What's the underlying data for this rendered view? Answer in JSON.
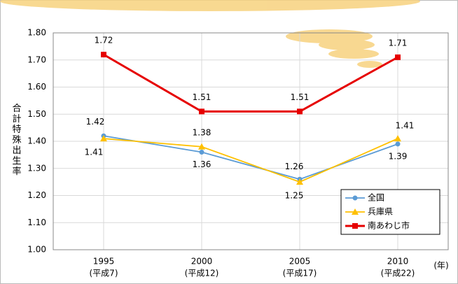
{
  "chart_data": {
    "type": "line",
    "y_label": "合計特殊出生率",
    "x_label": "(年)",
    "categories": [
      "1995",
      "2000",
      "2005",
      "2010"
    ],
    "category_sublabels": [
      "(平成7)",
      "(平成12)",
      "(平成17)",
      "(平成22)"
    ],
    "series": [
      {
        "name": "全国",
        "color": "#5b9bd5",
        "marker": "circle",
        "values": [
          1.42,
          1.36,
          1.26,
          1.39
        ]
      },
      {
        "name": "兵庫県",
        "color": "#ffc000",
        "marker": "triangle",
        "values": [
          1.41,
          1.38,
          1.25,
          1.41
        ]
      },
      {
        "name": "南あわじ市",
        "color": "#e60000",
        "marker": "square",
        "values": [
          1.72,
          1.51,
          1.51,
          1.71
        ]
      }
    ],
    "ylim": [
      1.0,
      1.8
    ],
    "yticks": [
      {
        "value": 1.0,
        "label": "1.00"
      },
      {
        "value": 1.1,
        "label": "1.10"
      },
      {
        "value": 1.2,
        "label": "1.20"
      },
      {
        "value": 1.3,
        "label": "1.30"
      },
      {
        "value": 1.4,
        "label": "1.40"
      },
      {
        "value": 1.5,
        "label": "1.50"
      },
      {
        "value": 1.6,
        "label": "1.60"
      },
      {
        "value": 1.7,
        "label": "1.70"
      },
      {
        "value": 1.8,
        "label": "1.80"
      }
    ],
    "grid": true,
    "legend": "lower right"
  }
}
